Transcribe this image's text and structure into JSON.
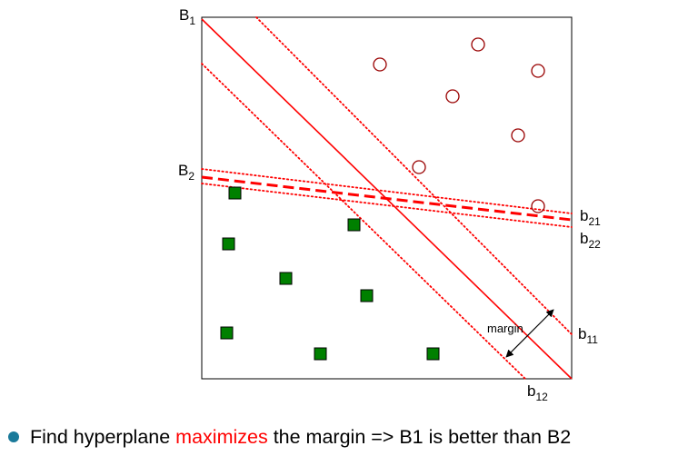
{
  "colors": {
    "boundary_line": "#ff0000",
    "circle_stroke": "#990000",
    "square_fill": "#008000",
    "square_stroke": "#000000",
    "highlight_text": "#ff0000",
    "bullet": "#1a7a9a"
  },
  "labels": {
    "B1": {
      "base": "B",
      "sub": "1"
    },
    "B2": {
      "base": "B",
      "sub": "2"
    },
    "b11": {
      "base": "b",
      "sub": "11"
    },
    "b12": {
      "base": "b",
      "sub": "12"
    },
    "b21": {
      "base": "b",
      "sub": "21"
    },
    "b22": {
      "base": "b",
      "sub": "22"
    },
    "margin": "margin"
  },
  "caption": {
    "bullet_icon": "filled-circle-bullet",
    "prefix": "Find hyperplane ",
    "highlight": "maximizes",
    "suffix": " the margin => B1 is better than B2"
  }
}
